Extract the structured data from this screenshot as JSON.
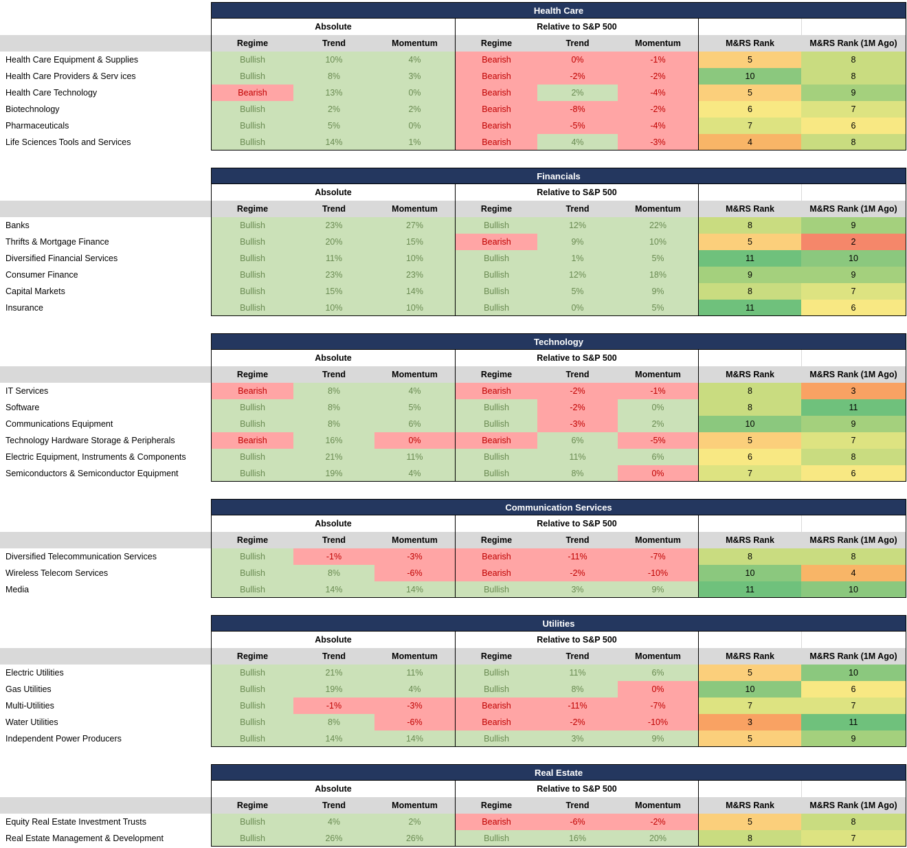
{
  "colors": {
    "banner_bg": "#24375F",
    "banner_text": "#FFFFFF",
    "header_band_bg": "#D9D9D9",
    "bullish_bg": "#CBE1B8",
    "bullish_text": "#6A8B52",
    "bearish_bg": "#FFA5A5",
    "bearish_text": "#C00000",
    "border": "#000000",
    "rank_scale": {
      "2": "#F5876A",
      "3": "#F9A263",
      "4": "#F8B567",
      "5": "#FBCF7B",
      "6": "#F8E883",
      "7": "#DDE381",
      "8": "#C9DC80",
      "9": "#A4D07D",
      "10": "#8BC87E",
      "11": "#6FC17C"
    }
  },
  "column_headers": {
    "group_absolute": "Absolute",
    "group_relative": "Relative to S&P 500",
    "regime": "Regime",
    "trend": "Trend",
    "momentum": "Momentum",
    "rank": "M&RS Rank",
    "rank_1m": "M&RS Rank (1M Ago)"
  },
  "sections": [
    {
      "title": "Health Care",
      "rows": [
        {
          "label": "Health Care Equipment & Supplies",
          "cells": [
            [
              "Bullish",
              "g"
            ],
            [
              "10%",
              "g"
            ],
            [
              "4%",
              "g"
            ],
            [
              "Bearish",
              "r"
            ],
            [
              "0%",
              "r"
            ],
            [
              "-1%",
              "r"
            ]
          ],
          "rank": 5,
          "rank_1m": 8
        },
        {
          "label": "Health Care Providers & Serv ices",
          "cells": [
            [
              "Bullish",
              "g"
            ],
            [
              "8%",
              "g"
            ],
            [
              "3%",
              "g"
            ],
            [
              "Bearish",
              "r"
            ],
            [
              "-2%",
              "r"
            ],
            [
              "-2%",
              "r"
            ]
          ],
          "rank": 10,
          "rank_1m": 8
        },
        {
          "label": "Health Care Technology",
          "cells": [
            [
              "Bearish",
              "r"
            ],
            [
              "13%",
              "g"
            ],
            [
              "0%",
              "g"
            ],
            [
              "Bearish",
              "r"
            ],
            [
              "2%",
              "g"
            ],
            [
              "-4%",
              "r"
            ]
          ],
          "rank": 5,
          "rank_1m": 9
        },
        {
          "label": "Biotechnology",
          "cells": [
            [
              "Bullish",
              "g"
            ],
            [
              "2%",
              "g"
            ],
            [
              "2%",
              "g"
            ],
            [
              "Bearish",
              "r"
            ],
            [
              "-8%",
              "r"
            ],
            [
              "-2%",
              "r"
            ]
          ],
          "rank": 6,
          "rank_1m": 7
        },
        {
          "label": "Pharmaceuticals",
          "cells": [
            [
              "Bullish",
              "g"
            ],
            [
              "5%",
              "g"
            ],
            [
              "0%",
              "g"
            ],
            [
              "Bearish",
              "r"
            ],
            [
              "-5%",
              "r"
            ],
            [
              "-4%",
              "r"
            ]
          ],
          "rank": 7,
          "rank_1m": 6
        },
        {
          "label": "Life Sciences Tools and Services",
          "cells": [
            [
              "Bullish",
              "g"
            ],
            [
              "14%",
              "g"
            ],
            [
              "1%",
              "g"
            ],
            [
              "Bearish",
              "r"
            ],
            [
              "4%",
              "g"
            ],
            [
              "-3%",
              "r"
            ]
          ],
          "rank": 4,
          "rank_1m": 8
        }
      ]
    },
    {
      "title": "Financials",
      "rows": [
        {
          "label": "Banks",
          "cells": [
            [
              "Bullish",
              "g"
            ],
            [
              "23%",
              "g"
            ],
            [
              "27%",
              "g"
            ],
            [
              "Bullish",
              "g"
            ],
            [
              "12%",
              "g"
            ],
            [
              "22%",
              "g"
            ]
          ],
          "rank": 8,
          "rank_1m": 9
        },
        {
          "label": "Thrifts & Mortgage Finance",
          "cells": [
            [
              "Bullish",
              "g"
            ],
            [
              "20%",
              "g"
            ],
            [
              "15%",
              "g"
            ],
            [
              "Bearish",
              "r"
            ],
            [
              "9%",
              "g"
            ],
            [
              "10%",
              "g"
            ]
          ],
          "rank": 5,
          "rank_1m": 2
        },
        {
          "label": "Diversified Financial Services",
          "cells": [
            [
              "Bullish",
              "g"
            ],
            [
              "11%",
              "g"
            ],
            [
              "10%",
              "g"
            ],
            [
              "Bullish",
              "g"
            ],
            [
              "1%",
              "g"
            ],
            [
              "5%",
              "g"
            ]
          ],
          "rank": 11,
          "rank_1m": 10
        },
        {
          "label": "Consumer Finance",
          "cells": [
            [
              "Bullish",
              "g"
            ],
            [
              "23%",
              "g"
            ],
            [
              "23%",
              "g"
            ],
            [
              "Bullish",
              "g"
            ],
            [
              "12%",
              "g"
            ],
            [
              "18%",
              "g"
            ]
          ],
          "rank": 9,
          "rank_1m": 9
        },
        {
          "label": "Capital Markets",
          "cells": [
            [
              "Bullish",
              "g"
            ],
            [
              "15%",
              "g"
            ],
            [
              "14%",
              "g"
            ],
            [
              "Bullish",
              "g"
            ],
            [
              "5%",
              "g"
            ],
            [
              "9%",
              "g"
            ]
          ],
          "rank": 8,
          "rank_1m": 7
        },
        {
          "label": "Insurance",
          "cells": [
            [
              "Bullish",
              "g"
            ],
            [
              "10%",
              "g"
            ],
            [
              "10%",
              "g"
            ],
            [
              "Bullish",
              "g"
            ],
            [
              "0%",
              "g"
            ],
            [
              "5%",
              "g"
            ]
          ],
          "rank": 11,
          "rank_1m": 6
        }
      ]
    },
    {
      "title": "Technology",
      "rows": [
        {
          "label": "IT Services",
          "cells": [
            [
              "Bearish",
              "r"
            ],
            [
              "8%",
              "g"
            ],
            [
              "4%",
              "g"
            ],
            [
              "Bearish",
              "r"
            ],
            [
              "-2%",
              "r"
            ],
            [
              "-1%",
              "r"
            ]
          ],
          "rank": 8,
          "rank_1m": 3
        },
        {
          "label": "Software",
          "cells": [
            [
              "Bullish",
              "g"
            ],
            [
              "8%",
              "g"
            ],
            [
              "5%",
              "g"
            ],
            [
              "Bullish",
              "g"
            ],
            [
              "-2%",
              "r"
            ],
            [
              "0%",
              "g"
            ]
          ],
          "rank": 8,
          "rank_1m": 11
        },
        {
          "label": "Communications Equipment",
          "cells": [
            [
              "Bullish",
              "g"
            ],
            [
              "8%",
              "g"
            ],
            [
              "6%",
              "g"
            ],
            [
              "Bullish",
              "g"
            ],
            [
              "-3%",
              "r"
            ],
            [
              "2%",
              "g"
            ]
          ],
          "rank": 10,
          "rank_1m": 9
        },
        {
          "label": "Technology Hardware Storage & Peripherals",
          "cells": [
            [
              "Bearish",
              "r"
            ],
            [
              "16%",
              "g"
            ],
            [
              "0%",
              "r"
            ],
            [
              "Bearish",
              "r"
            ],
            [
              "6%",
              "g"
            ],
            [
              "-5%",
              "r"
            ]
          ],
          "rank": 5,
          "rank_1m": 7
        },
        {
          "label": "Electric Equipment, Instruments & Components",
          "cells": [
            [
              "Bullish",
              "g"
            ],
            [
              "21%",
              "g"
            ],
            [
              "11%",
              "g"
            ],
            [
              "Bullish",
              "g"
            ],
            [
              "11%",
              "g"
            ],
            [
              "6%",
              "g"
            ]
          ],
          "rank": 6,
          "rank_1m": 8
        },
        {
          "label": "Semiconductors & Semiconductor Equipment",
          "cells": [
            [
              "Bullish",
              "g"
            ],
            [
              "19%",
              "g"
            ],
            [
              "4%",
              "g"
            ],
            [
              "Bullish",
              "g"
            ],
            [
              "8%",
              "g"
            ],
            [
              "0%",
              "r"
            ]
          ],
          "rank": 7,
          "rank_1m": 6
        }
      ]
    },
    {
      "title": "Communication Services",
      "rows": [
        {
          "label": "Diversified Telecommunication Services",
          "cells": [
            [
              "Bullish",
              "g"
            ],
            [
              "-1%",
              "r"
            ],
            [
              "-3%",
              "r"
            ],
            [
              "Bearish",
              "r"
            ],
            [
              "-11%",
              "r"
            ],
            [
              "-7%",
              "r"
            ]
          ],
          "rank": 8,
          "rank_1m": 8
        },
        {
          "label": "Wireless Telecom Services",
          "cells": [
            [
              "Bullish",
              "g"
            ],
            [
              "8%",
              "g"
            ],
            [
              "-6%",
              "r"
            ],
            [
              "Bearish",
              "r"
            ],
            [
              "-2%",
              "r"
            ],
            [
              "-10%",
              "r"
            ]
          ],
          "rank": 10,
          "rank_1m": 4
        },
        {
          "label": "Media",
          "cells": [
            [
              "Bullish",
              "g"
            ],
            [
              "14%",
              "g"
            ],
            [
              "14%",
              "g"
            ],
            [
              "Bullish",
              "g"
            ],
            [
              "3%",
              "g"
            ],
            [
              "9%",
              "g"
            ]
          ],
          "rank": 11,
          "rank_1m": 10
        }
      ]
    },
    {
      "title": "Utilities",
      "rows": [
        {
          "label": "Electric Utilities",
          "cells": [
            [
              "Bullish",
              "g"
            ],
            [
              "21%",
              "g"
            ],
            [
              "11%",
              "g"
            ],
            [
              "Bullish",
              "g"
            ],
            [
              "11%",
              "g"
            ],
            [
              "6%",
              "g"
            ]
          ],
          "rank": 5,
          "rank_1m": 10
        },
        {
          "label": "Gas Utilities",
          "cells": [
            [
              "Bullish",
              "g"
            ],
            [
              "19%",
              "g"
            ],
            [
              "4%",
              "g"
            ],
            [
              "Bullish",
              "g"
            ],
            [
              "8%",
              "g"
            ],
            [
              "0%",
              "r"
            ]
          ],
          "rank": 10,
          "rank_1m": 6
        },
        {
          "label": "Multi-Utilities",
          "cells": [
            [
              "Bullish",
              "g"
            ],
            [
              "-1%",
              "r"
            ],
            [
              "-3%",
              "r"
            ],
            [
              "Bearish",
              "r"
            ],
            [
              "-11%",
              "r"
            ],
            [
              "-7%",
              "r"
            ]
          ],
          "rank": 7,
          "rank_1m": 7
        },
        {
          "label": "Water Utilities",
          "cells": [
            [
              "Bullish",
              "g"
            ],
            [
              "8%",
              "g"
            ],
            [
              "-6%",
              "r"
            ],
            [
              "Bearish",
              "r"
            ],
            [
              "-2%",
              "r"
            ],
            [
              "-10%",
              "r"
            ]
          ],
          "rank": 3,
          "rank_1m": 11
        },
        {
          "label": "Independent Power Producers",
          "cells": [
            [
              "Bullish",
              "g"
            ],
            [
              "14%",
              "g"
            ],
            [
              "14%",
              "g"
            ],
            [
              "Bullish",
              "g"
            ],
            [
              "3%",
              "g"
            ],
            [
              "9%",
              "g"
            ]
          ],
          "rank": 5,
          "rank_1m": 9
        }
      ]
    },
    {
      "title": "Real Estate",
      "rows": [
        {
          "label": "Equity Real Estate Investment Trusts",
          "cells": [
            [
              "Bullish",
              "g"
            ],
            [
              "4%",
              "g"
            ],
            [
              "2%",
              "g"
            ],
            [
              "Bearish",
              "r"
            ],
            [
              "-6%",
              "r"
            ],
            [
              "-2%",
              "r"
            ]
          ],
          "rank": 5,
          "rank_1m": 8
        },
        {
          "label": "Real Estate Management & Development",
          "cells": [
            [
              "Bullish",
              "g"
            ],
            [
              "26%",
              "g"
            ],
            [
              "26%",
              "g"
            ],
            [
              "Bullish",
              "g"
            ],
            [
              "16%",
              "g"
            ],
            [
              "20%",
              "g"
            ]
          ],
          "rank": 8,
          "rank_1m": 7
        }
      ]
    }
  ]
}
